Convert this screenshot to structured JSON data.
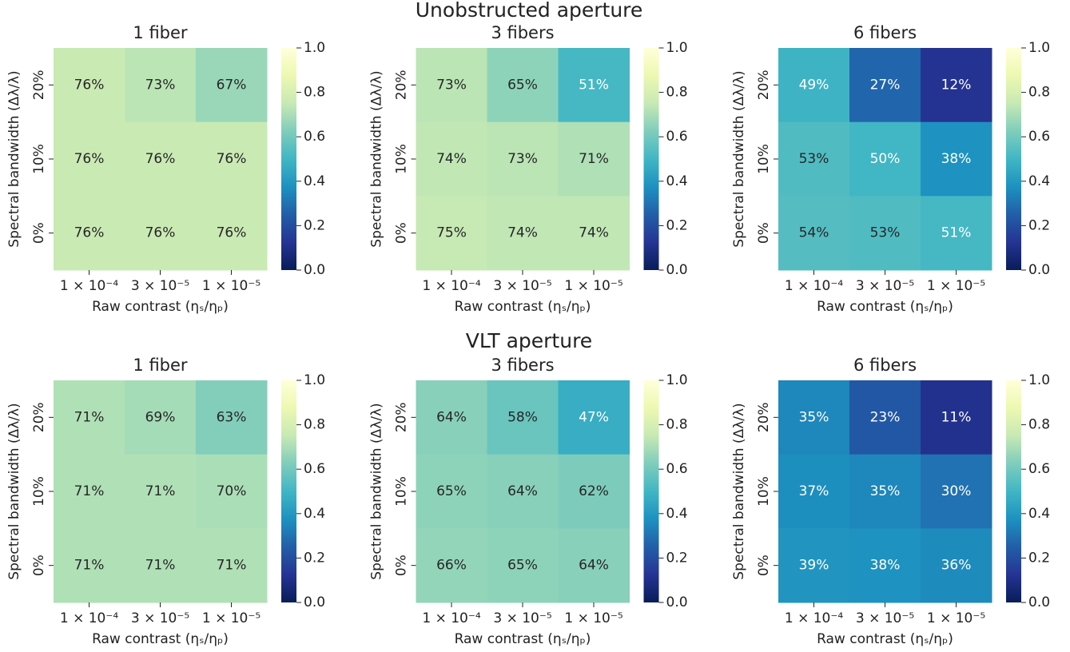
{
  "suptitles": [
    "Unobstructed aperture",
    "VLT aperture"
  ],
  "chart_data": [
    {
      "type": "heatmap",
      "title": "1 fiber",
      "x_label": "Raw contrast (ηₛ/ηₚ)",
      "y_label": "Spectral bandwidth (Δλ/λ)",
      "x": [
        "1 × 10⁻⁴",
        "3 × 10⁻⁵",
        "1 × 10⁻⁵"
      ],
      "y": [
        "20%",
        "10%",
        "0%"
      ],
      "values": [
        [
          0.76,
          0.73,
          0.67
        ],
        [
          0.76,
          0.76,
          0.76
        ],
        [
          0.76,
          0.76,
          0.76
        ]
      ],
      "value_labels": [
        [
          "76%",
          "73%",
          "67%"
        ],
        [
          "76%",
          "76%",
          "76%"
        ],
        [
          "76%",
          "76%",
          "76%"
        ]
      ],
      "colormap": "YlGnBu",
      "zlim": [
        0,
        1
      ],
      "zticks": [
        {
          "value": 0,
          "label": "0.0"
        },
        0.2,
        0.4,
        0.6,
        0.8,
        {
          "value": 1,
          "label": "1.0"
        }
      ]
    },
    {
      "type": "heatmap",
      "title": "3 fibers",
      "x_label": "Raw contrast (ηₛ/ηₚ)",
      "y_label": "Spectral bandwidth (Δλ/λ)",
      "x": [
        "1 × 10⁻⁴",
        "3 × 10⁻⁵",
        "1 × 10⁻⁵"
      ],
      "y": [
        "20%",
        "10%",
        "0%"
      ],
      "values": [
        [
          0.73,
          0.65,
          0.51
        ],
        [
          0.74,
          0.73,
          0.71
        ],
        [
          0.75,
          0.74,
          0.74
        ]
      ],
      "value_labels": [
        [
          "73%",
          "65%",
          "51%"
        ],
        [
          "74%",
          "73%",
          "71%"
        ],
        [
          "75%",
          "74%",
          "74%"
        ]
      ],
      "colormap": "YlGnBu",
      "zlim": [
        0,
        1
      ],
      "zticks": [
        {
          "value": 0,
          "label": "0.0"
        },
        0.2,
        0.4,
        0.6,
        0.8,
        {
          "value": 1,
          "label": "1.0"
        }
      ]
    },
    {
      "type": "heatmap",
      "title": "6 fibers",
      "x_label": "Raw contrast (ηₛ/ηₚ)",
      "y_label": "Spectral bandwidth (Δλ/λ)",
      "x": [
        "1 × 10⁻⁴",
        "3 × 10⁻⁵",
        "1 × 10⁻⁵"
      ],
      "y": [
        "20%",
        "10%",
        "0%"
      ],
      "values": [
        [
          0.49,
          0.27,
          0.12
        ],
        [
          0.53,
          0.5,
          0.38
        ],
        [
          0.54,
          0.53,
          0.51
        ]
      ],
      "value_labels": [
        [
          "49%",
          "27%",
          "12%"
        ],
        [
          "53%",
          "50%",
          "38%"
        ],
        [
          "54%",
          "53%",
          "51%"
        ]
      ],
      "colormap": "YlGnBu",
      "zlim": [
        0,
        1
      ],
      "zticks": [
        {
          "value": 0,
          "label": "0.0"
        },
        0.2,
        0.4,
        0.6,
        0.8,
        {
          "value": 1,
          "label": "1.0"
        }
      ]
    },
    {
      "type": "heatmap",
      "title": "1 fiber",
      "x_label": "Raw contrast (ηₛ/ηₚ)",
      "y_label": "Spectral bandwidth (Δλ/λ)",
      "x": [
        "1 × 10⁻⁴",
        "3 × 10⁻⁵",
        "1 × 10⁻⁵"
      ],
      "y": [
        "20%",
        "10%",
        "0%"
      ],
      "values": [
        [
          0.71,
          0.69,
          0.63
        ],
        [
          0.71,
          0.71,
          0.7
        ],
        [
          0.71,
          0.71,
          0.71
        ]
      ],
      "value_labels": [
        [
          "71%",
          "69%",
          "63%"
        ],
        [
          "71%",
          "71%",
          "70%"
        ],
        [
          "71%",
          "71%",
          "71%"
        ]
      ],
      "colormap": "YlGnBu",
      "zlim": [
        0,
        1
      ],
      "zticks": [
        {
          "value": 0,
          "label": "0.0"
        },
        0.2,
        0.4,
        0.6,
        0.8,
        {
          "value": 1,
          "label": "1.0"
        }
      ]
    },
    {
      "type": "heatmap",
      "title": "3 fibers",
      "x_label": "Raw contrast (ηₛ/ηₚ)",
      "y_label": "Spectral bandwidth (Δλ/λ)",
      "x": [
        "1 × 10⁻⁴",
        "3 × 10⁻⁵",
        "1 × 10⁻⁵"
      ],
      "y": [
        "20%",
        "10%",
        "0%"
      ],
      "values": [
        [
          0.64,
          0.58,
          0.47
        ],
        [
          0.65,
          0.64,
          0.62
        ],
        [
          0.66,
          0.65,
          0.64
        ]
      ],
      "value_labels": [
        [
          "64%",
          "58%",
          "47%"
        ],
        [
          "65%",
          "64%",
          "62%"
        ],
        [
          "66%",
          "65%",
          "64%"
        ]
      ],
      "colormap": "YlGnBu",
      "zlim": [
        0,
        1
      ],
      "zticks": [
        {
          "value": 0,
          "label": "0.0"
        },
        0.2,
        0.4,
        0.6,
        0.8,
        {
          "value": 1,
          "label": "1.0"
        }
      ]
    },
    {
      "type": "heatmap",
      "title": "6 fibers",
      "x_label": "Raw contrast (ηₛ/ηₚ)",
      "y_label": "Spectral bandwidth (Δλ/λ)",
      "x": [
        "1 × 10⁻⁴",
        "3 × 10⁻⁵",
        "1 × 10⁻⁵"
      ],
      "y": [
        "20%",
        "10%",
        "0%"
      ],
      "values": [
        [
          0.35,
          0.23,
          0.11
        ],
        [
          0.37,
          0.35,
          0.3
        ],
        [
          0.39,
          0.38,
          0.36
        ]
      ],
      "value_labels": [
        [
          "35%",
          "23%",
          "11%"
        ],
        [
          "37%",
          "35%",
          "30%"
        ],
        [
          "39%",
          "38%",
          "36%"
        ]
      ],
      "colormap": "YlGnBu",
      "zlim": [
        0,
        1
      ],
      "zticks": [
        {
          "value": 0,
          "label": "0.0"
        },
        0.2,
        0.4,
        0.6,
        0.8,
        {
          "value": 1,
          "label": "1.0"
        }
      ]
    }
  ]
}
